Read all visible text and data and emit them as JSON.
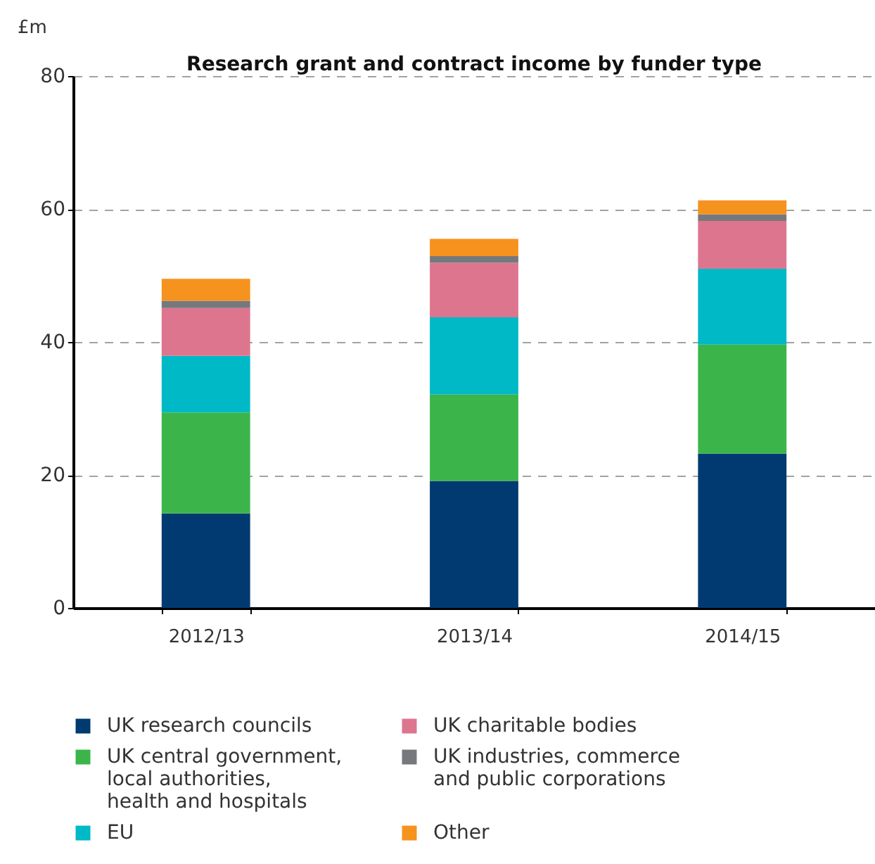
{
  "chart_data": {
    "type": "bar",
    "title": "Research grant and contract income by funder type",
    "ylabel": "£m",
    "categories": [
      "2012/13",
      "2013/14",
      "2014/15"
    ],
    "stacked": true,
    "ylim": [
      0,
      80
    ],
    "yticks": [
      0,
      20,
      40,
      60,
      80
    ],
    "grid": "y",
    "legend": "bottom",
    "series": [
      {
        "name": "UK research councils",
        "color": "#003a70",
        "values": [
          14.2,
          19.1,
          23.2
        ]
      },
      {
        "name": "UK central government, local authorities, health and hospitals",
        "color": "#3bb54a",
        "values": [
          15.2,
          13.0,
          16.4
        ]
      },
      {
        "name": "EU",
        "color": "#00b9c6",
        "values": [
          8.5,
          11.6,
          11.4
        ]
      },
      {
        "name": "UK charitable bodies",
        "color": "#de758f",
        "values": [
          7.2,
          8.2,
          7.2
        ]
      },
      {
        "name": "UK industries, commerce and public corporations",
        "color": "#77787b",
        "values": [
          1.1,
          1.0,
          1.0
        ]
      },
      {
        "name": "Other",
        "color": "#f6921e",
        "values": [
          3.3,
          2.6,
          2.1
        ]
      }
    ]
  }
}
